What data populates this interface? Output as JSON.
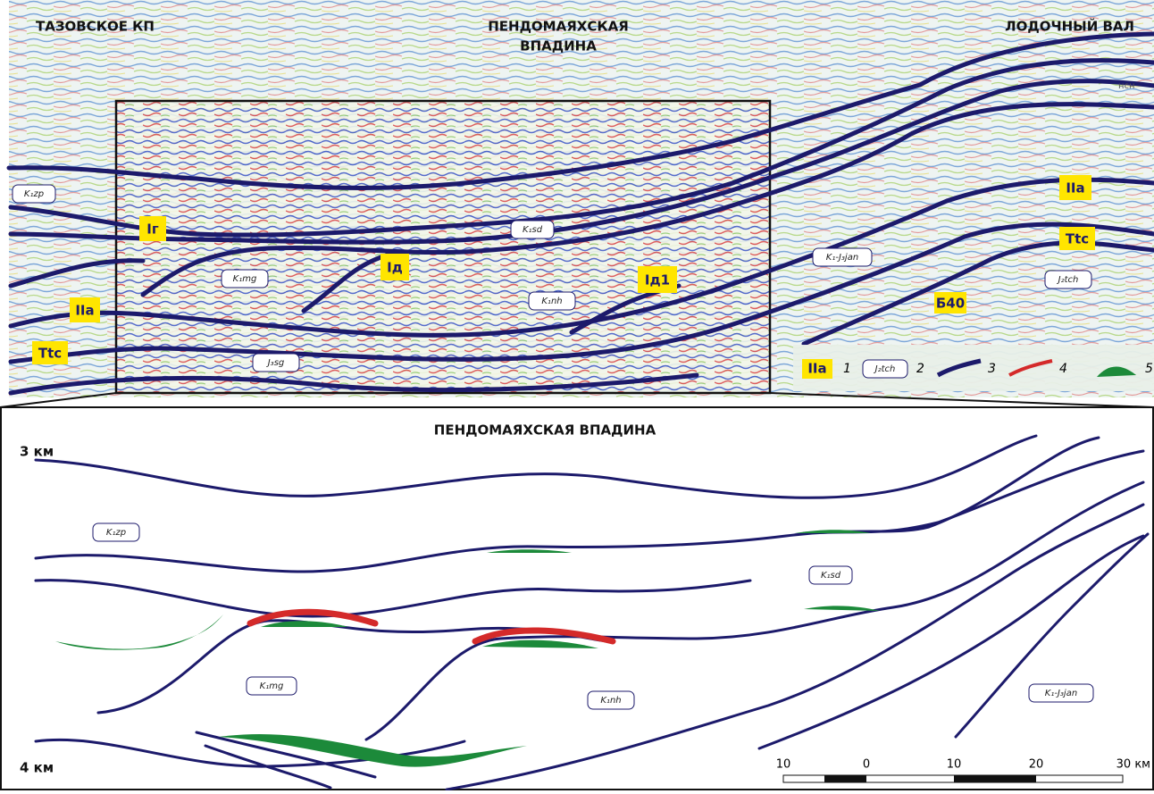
{
  "top_panel": {
    "region_left": "ТАЗОВСКОЕ КП",
    "region_center_lines": [
      "ПЕНДОМАЯХСКАЯ",
      "ВПАДИНА"
    ],
    "region_right": "ЛОДОЧНЫЙ ВАЛ",
    "small_label": "нсн",
    "formations": [
      "K₁zp",
      "K₁sd",
      "K₁mg",
      "K₁nh",
      "J₃sg",
      "K₁-J₃jan",
      "J₂tch"
    ],
    "markers": [
      "Iг",
      "Iд",
      "Iд1",
      "IIa",
      "Ttc",
      "IIa",
      "Ttc",
      "Б40"
    ]
  },
  "legend": [
    {
      "symbol": "IIa",
      "number": "1"
    },
    {
      "symbol": "J₂tch",
      "number": "2"
    },
    {
      "number": "3"
    },
    {
      "number": "4"
    },
    {
      "number": "5"
    }
  ],
  "bottom_panel": {
    "title": "ПЕНДОМАЯХСКАЯ ВПАДИНА",
    "depth_top": "3 км",
    "depth_bottom": "4 км",
    "formations": [
      "K₁zp",
      "K₁sd",
      "K₁mg",
      "K₁nh",
      "K₁-J₃jan"
    ],
    "scale_labels": [
      "10",
      "0",
      "10",
      "20",
      "30 км"
    ]
  }
}
